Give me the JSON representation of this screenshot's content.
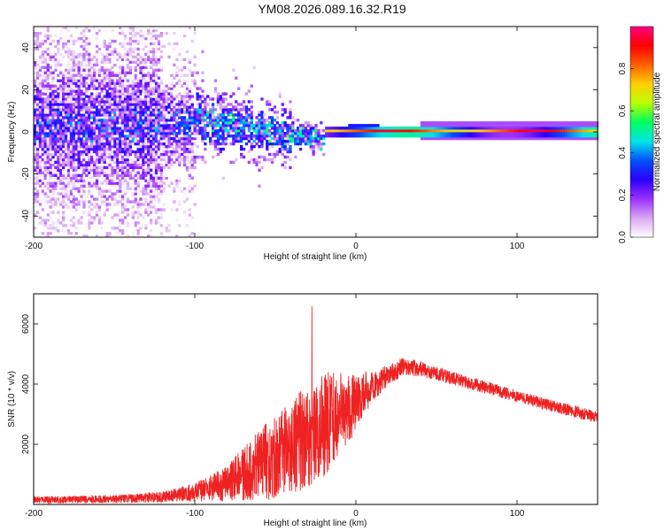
{
  "title": "YM08.2026.089.16.32.R19",
  "chart_data": [
    {
      "type": "heatmap",
      "xlabel": "Height of straight line (km)",
      "ylabel": "Frequency (Hz)",
      "xlim": [
        -200,
        150
      ],
      "ylim": [
        -50,
        50
      ],
      "xticks": [
        -200,
        -100,
        0,
        100
      ],
      "yticks": [
        -40,
        -20,
        0,
        20,
        40
      ],
      "colorbar": {
        "label": "Normalized spectral amplitude",
        "range": [
          0,
          1
        ],
        "ticks": [
          0.0,
          0.2,
          0.4,
          0.6,
          0.8
        ],
        "colors": [
          "#ffffff",
          "#d9a6f2",
          "#9b30ff",
          "#2a00ff",
          "#0050ff",
          "#00e5e5",
          "#00ff60",
          "#b8ff00",
          "#ffd000",
          "#ff6000",
          "#ff0000",
          "#ff0080"
        ]
      }
    },
    {
      "type": "line",
      "xlabel": "Height of straight line (km)",
      "ylabel": "SNR (10 * v/v)",
      "xlim": [
        -200,
        150
      ],
      "ylim": [
        0,
        7000
      ],
      "xticks": [
        -200,
        -100,
        0,
        100
      ],
      "yticks": [
        2000,
        4000,
        6000
      ],
      "color": "#ee2222",
      "envelope": {
        "x": [
          -200,
          -150,
          -120,
          -100,
          -80,
          -60,
          -40,
          -20,
          0,
          10,
          20,
          30,
          40,
          60,
          80,
          100,
          120,
          150
        ],
        "mean": [
          150,
          180,
          250,
          400,
          700,
          1300,
          1900,
          2600,
          3400,
          3900,
          4300,
          4600,
          4500,
          4200,
          3900,
          3600,
          3300,
          2900
        ],
        "spread": [
          120,
          130,
          180,
          300,
          600,
          1200,
          1600,
          1800,
          1000,
          500,
          350,
          300,
          250,
          220,
          220,
          200,
          200,
          200
        ]
      }
    }
  ]
}
